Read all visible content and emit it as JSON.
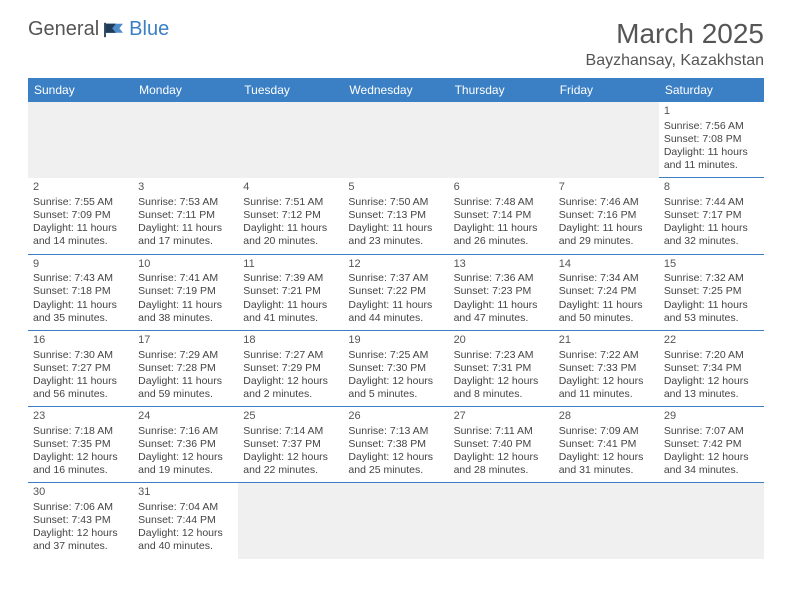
{
  "logo": {
    "general": "General",
    "blue": "Blue"
  },
  "title": "March 2025",
  "location": "Bayzhansay, Kazakhstan",
  "colors": {
    "header_bg": "#3b7fc4",
    "header_text": "#ffffff",
    "border": "#3b7fc4",
    "blank_bg": "#f0f0f0",
    "text": "#444444",
    "title_text": "#555555"
  },
  "weekdays": [
    "Sunday",
    "Monday",
    "Tuesday",
    "Wednesday",
    "Thursday",
    "Friday",
    "Saturday"
  ],
  "weeks": [
    [
      null,
      null,
      null,
      null,
      null,
      null,
      {
        "n": "1",
        "sr": "Sunrise: 7:56 AM",
        "ss": "Sunset: 7:08 PM",
        "dl": "Daylight: 11 hours and 11 minutes."
      }
    ],
    [
      {
        "n": "2",
        "sr": "Sunrise: 7:55 AM",
        "ss": "Sunset: 7:09 PM",
        "dl": "Daylight: 11 hours and 14 minutes."
      },
      {
        "n": "3",
        "sr": "Sunrise: 7:53 AM",
        "ss": "Sunset: 7:11 PM",
        "dl": "Daylight: 11 hours and 17 minutes."
      },
      {
        "n": "4",
        "sr": "Sunrise: 7:51 AM",
        "ss": "Sunset: 7:12 PM",
        "dl": "Daylight: 11 hours and 20 minutes."
      },
      {
        "n": "5",
        "sr": "Sunrise: 7:50 AM",
        "ss": "Sunset: 7:13 PM",
        "dl": "Daylight: 11 hours and 23 minutes."
      },
      {
        "n": "6",
        "sr": "Sunrise: 7:48 AM",
        "ss": "Sunset: 7:14 PM",
        "dl": "Daylight: 11 hours and 26 minutes."
      },
      {
        "n": "7",
        "sr": "Sunrise: 7:46 AM",
        "ss": "Sunset: 7:16 PM",
        "dl": "Daylight: 11 hours and 29 minutes."
      },
      {
        "n": "8",
        "sr": "Sunrise: 7:44 AM",
        "ss": "Sunset: 7:17 PM",
        "dl": "Daylight: 11 hours and 32 minutes."
      }
    ],
    [
      {
        "n": "9",
        "sr": "Sunrise: 7:43 AM",
        "ss": "Sunset: 7:18 PM",
        "dl": "Daylight: 11 hours and 35 minutes."
      },
      {
        "n": "10",
        "sr": "Sunrise: 7:41 AM",
        "ss": "Sunset: 7:19 PM",
        "dl": "Daylight: 11 hours and 38 minutes."
      },
      {
        "n": "11",
        "sr": "Sunrise: 7:39 AM",
        "ss": "Sunset: 7:21 PM",
        "dl": "Daylight: 11 hours and 41 minutes."
      },
      {
        "n": "12",
        "sr": "Sunrise: 7:37 AM",
        "ss": "Sunset: 7:22 PM",
        "dl": "Daylight: 11 hours and 44 minutes."
      },
      {
        "n": "13",
        "sr": "Sunrise: 7:36 AM",
        "ss": "Sunset: 7:23 PM",
        "dl": "Daylight: 11 hours and 47 minutes."
      },
      {
        "n": "14",
        "sr": "Sunrise: 7:34 AM",
        "ss": "Sunset: 7:24 PM",
        "dl": "Daylight: 11 hours and 50 minutes."
      },
      {
        "n": "15",
        "sr": "Sunrise: 7:32 AM",
        "ss": "Sunset: 7:25 PM",
        "dl": "Daylight: 11 hours and 53 minutes."
      }
    ],
    [
      {
        "n": "16",
        "sr": "Sunrise: 7:30 AM",
        "ss": "Sunset: 7:27 PM",
        "dl": "Daylight: 11 hours and 56 minutes."
      },
      {
        "n": "17",
        "sr": "Sunrise: 7:29 AM",
        "ss": "Sunset: 7:28 PM",
        "dl": "Daylight: 11 hours and 59 minutes."
      },
      {
        "n": "18",
        "sr": "Sunrise: 7:27 AM",
        "ss": "Sunset: 7:29 PM",
        "dl": "Daylight: 12 hours and 2 minutes."
      },
      {
        "n": "19",
        "sr": "Sunrise: 7:25 AM",
        "ss": "Sunset: 7:30 PM",
        "dl": "Daylight: 12 hours and 5 minutes."
      },
      {
        "n": "20",
        "sr": "Sunrise: 7:23 AM",
        "ss": "Sunset: 7:31 PM",
        "dl": "Daylight: 12 hours and 8 minutes."
      },
      {
        "n": "21",
        "sr": "Sunrise: 7:22 AM",
        "ss": "Sunset: 7:33 PM",
        "dl": "Daylight: 12 hours and 11 minutes."
      },
      {
        "n": "22",
        "sr": "Sunrise: 7:20 AM",
        "ss": "Sunset: 7:34 PM",
        "dl": "Daylight: 12 hours and 13 minutes."
      }
    ],
    [
      {
        "n": "23",
        "sr": "Sunrise: 7:18 AM",
        "ss": "Sunset: 7:35 PM",
        "dl": "Daylight: 12 hours and 16 minutes."
      },
      {
        "n": "24",
        "sr": "Sunrise: 7:16 AM",
        "ss": "Sunset: 7:36 PM",
        "dl": "Daylight: 12 hours and 19 minutes."
      },
      {
        "n": "25",
        "sr": "Sunrise: 7:14 AM",
        "ss": "Sunset: 7:37 PM",
        "dl": "Daylight: 12 hours and 22 minutes."
      },
      {
        "n": "26",
        "sr": "Sunrise: 7:13 AM",
        "ss": "Sunset: 7:38 PM",
        "dl": "Daylight: 12 hours and 25 minutes."
      },
      {
        "n": "27",
        "sr": "Sunrise: 7:11 AM",
        "ss": "Sunset: 7:40 PM",
        "dl": "Daylight: 12 hours and 28 minutes."
      },
      {
        "n": "28",
        "sr": "Sunrise: 7:09 AM",
        "ss": "Sunset: 7:41 PM",
        "dl": "Daylight: 12 hours and 31 minutes."
      },
      {
        "n": "29",
        "sr": "Sunrise: 7:07 AM",
        "ss": "Sunset: 7:42 PM",
        "dl": "Daylight: 12 hours and 34 minutes."
      }
    ],
    [
      {
        "n": "30",
        "sr": "Sunrise: 7:06 AM",
        "ss": "Sunset: 7:43 PM",
        "dl": "Daylight: 12 hours and 37 minutes."
      },
      {
        "n": "31",
        "sr": "Sunrise: 7:04 AM",
        "ss": "Sunset: 7:44 PM",
        "dl": "Daylight: 12 hours and 40 minutes."
      },
      null,
      null,
      null,
      null,
      null
    ]
  ]
}
